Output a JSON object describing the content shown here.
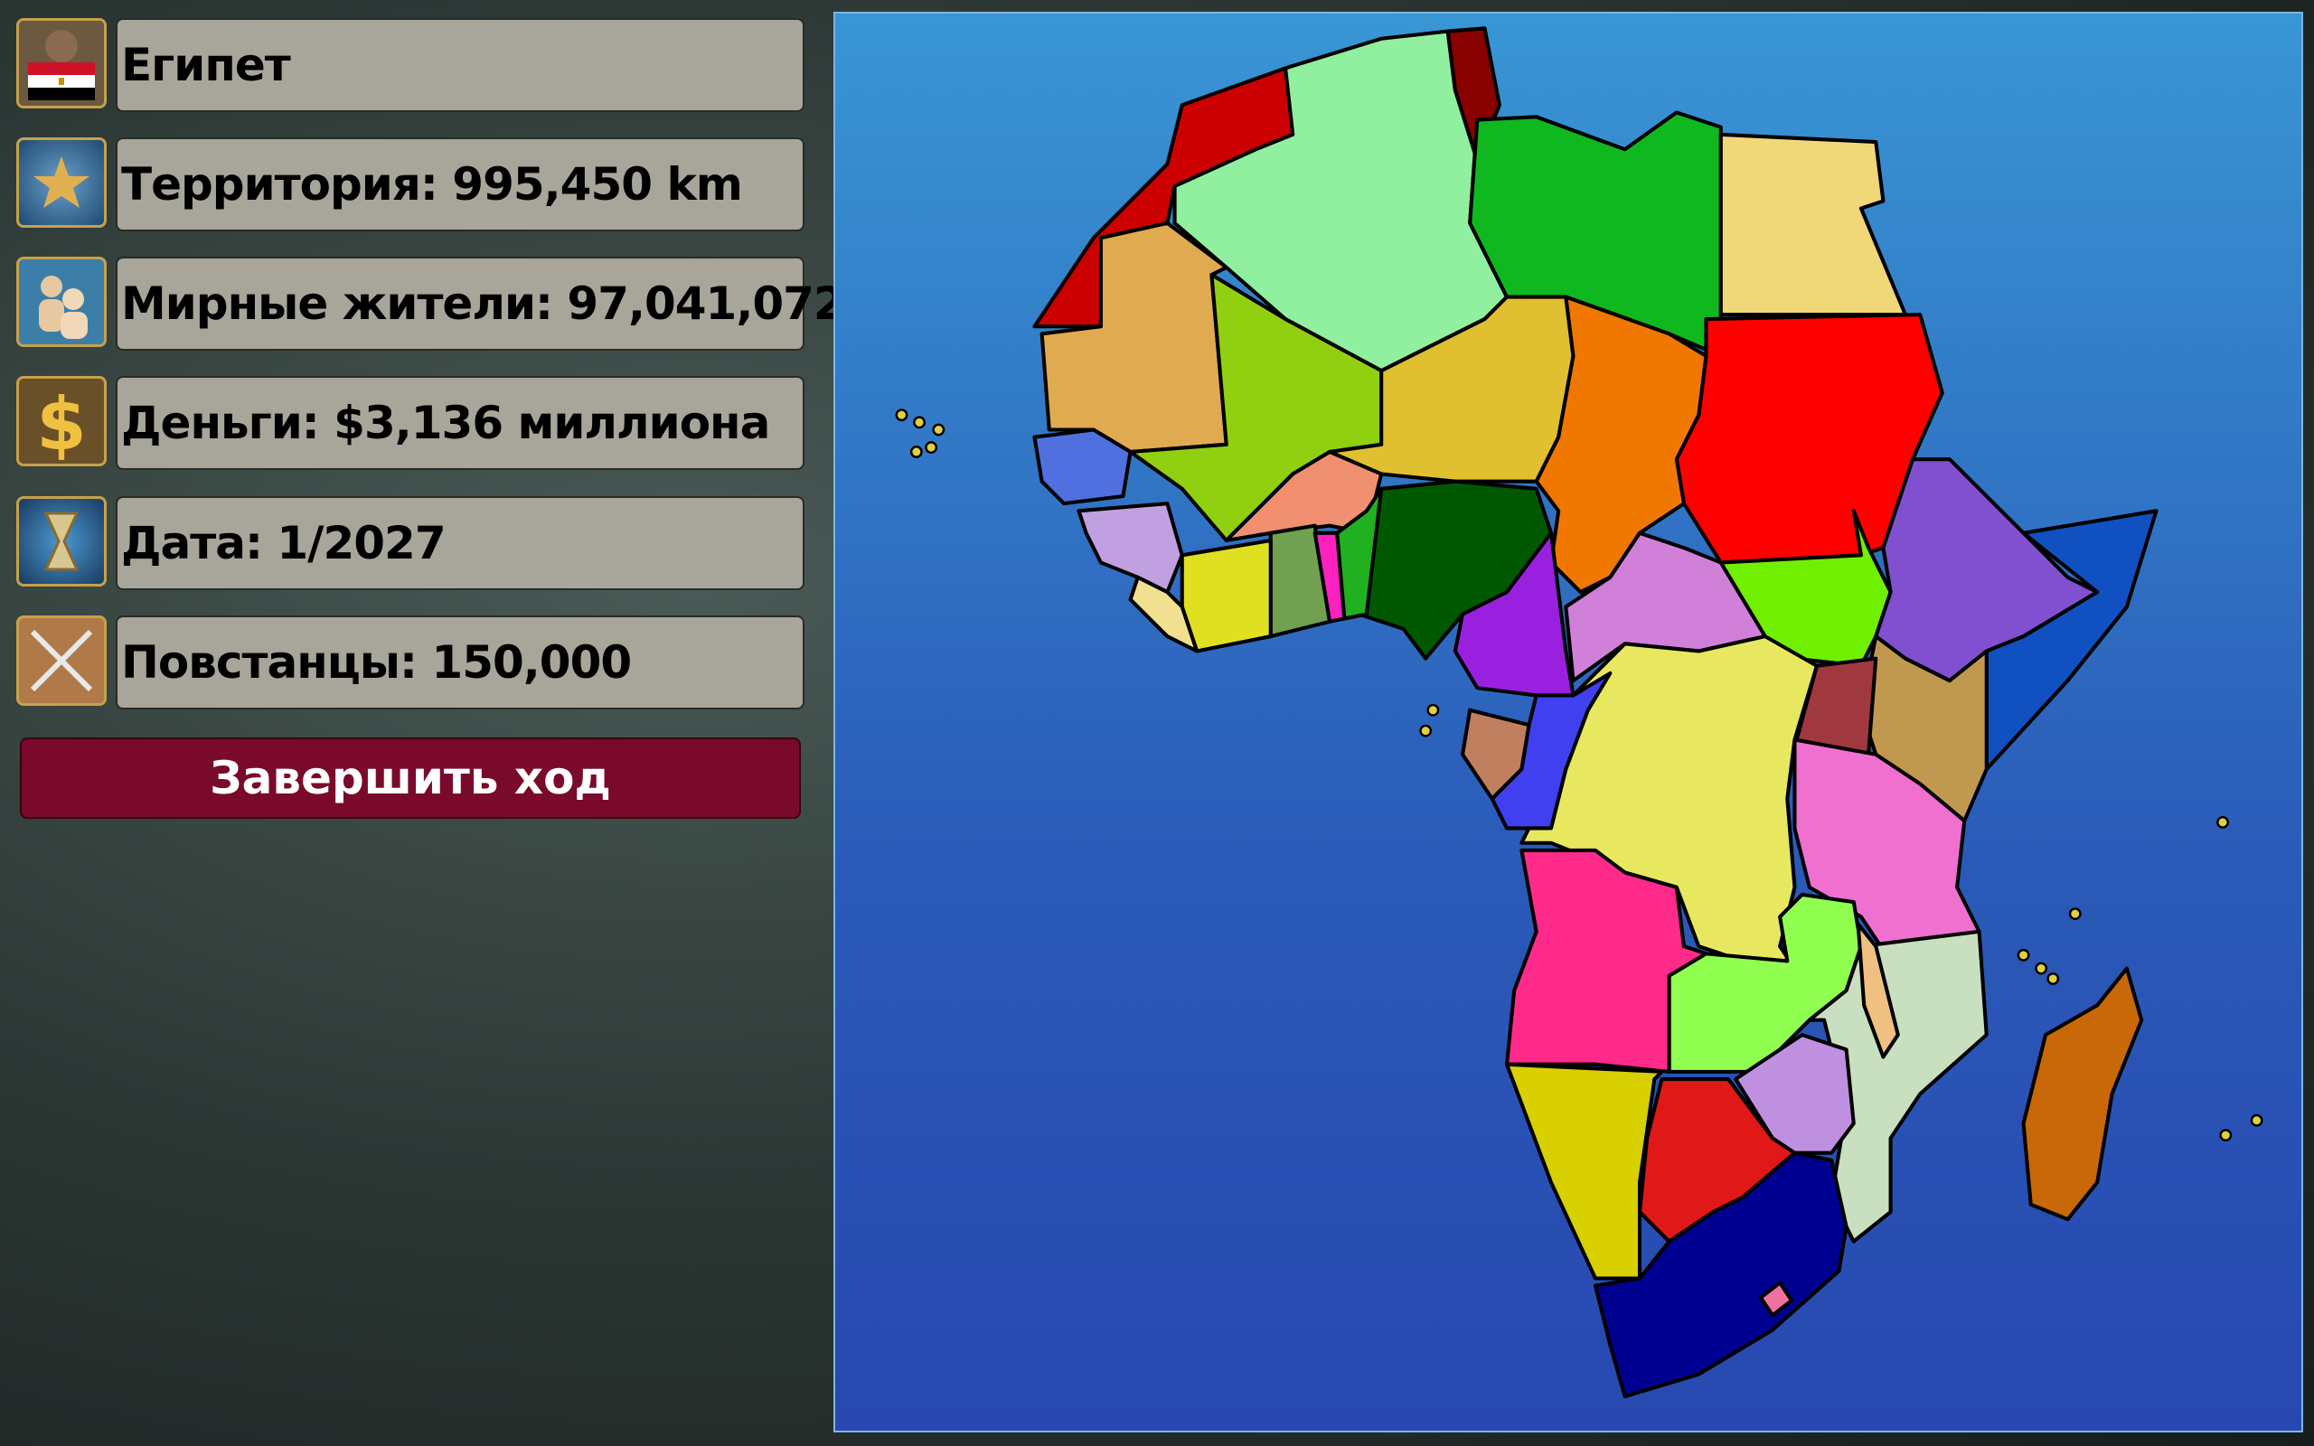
{
  "country": "Египет",
  "stats": [
    "Территория: 995,450 km",
    "Мирные жители: 97,041,072",
    "Деньги: $3,136 миллиона",
    "Дата: 1/2027",
    "Повстанцы: 150,000"
  ],
  "end_turn_button": "Завершить ход"
}
